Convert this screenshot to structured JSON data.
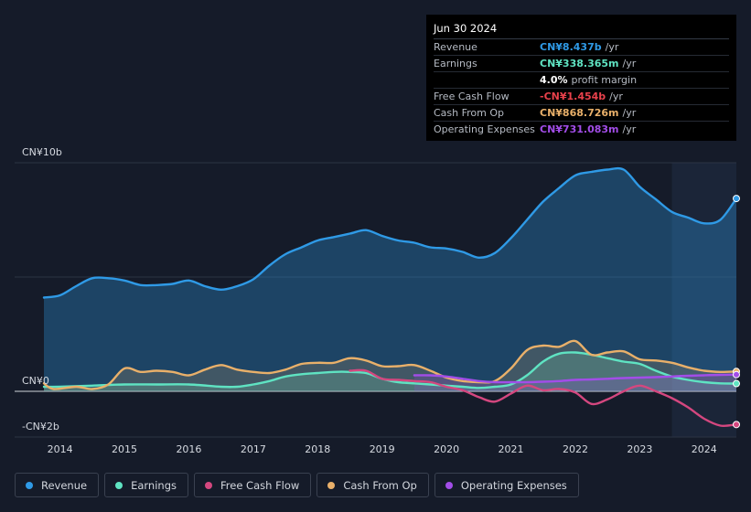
{
  "tooltip": {
    "date": "Jun 30 2024",
    "rows": [
      {
        "label": "Revenue",
        "value": "CN¥8.437b",
        "unit": "/yr",
        "color": "#2f9ae6"
      },
      {
        "label": "Earnings",
        "value": "CN¥338.365m",
        "unit": "/yr",
        "color": "#5fe3c2"
      },
      {
        "label": "",
        "value": "4.0%",
        "unit": "profit margin",
        "color": "#ffffff"
      },
      {
        "label": "Free Cash Flow",
        "value": "-CN¥1.454b",
        "unit": "/yr",
        "color": "#e8414b"
      },
      {
        "label": "Cash From Op",
        "value": "CN¥868.726m",
        "unit": "/yr",
        "color": "#e9b06a"
      },
      {
        "label": "Operating Expenses",
        "value": "CN¥731.083m",
        "unit": "/yr",
        "color": "#a24de8"
      }
    ]
  },
  "legend": [
    {
      "label": "Revenue",
      "color": "#2f9ae6"
    },
    {
      "label": "Earnings",
      "color": "#5fe3c2"
    },
    {
      "label": "Free Cash Flow",
      "color": "#d4477f"
    },
    {
      "label": "Cash From Op",
      "color": "#e9b06a"
    },
    {
      "label": "Operating Expenses",
      "color": "#a24de8"
    }
  ],
  "chart_data": {
    "type": "line",
    "unit": "CN¥ billions",
    "ylim": [
      -2,
      10
    ],
    "y_tick_labels": [
      {
        "value": 10,
        "label": "CN¥10b"
      },
      {
        "value": 0,
        "label": "CN¥0"
      },
      {
        "value": -2,
        "label": "-CN¥2b"
      }
    ],
    "x_ticks": [
      "2014",
      "2015",
      "2016",
      "2017",
      "2018",
      "2019",
      "2020",
      "2021",
      "2022",
      "2023",
      "2024"
    ],
    "x_range": [
      2013.75,
      2024.5
    ],
    "forecast_start": 2023.5,
    "series": [
      {
        "name": "Revenue",
        "color": "#2f9ae6",
        "fill": true,
        "x": [
          2013.75,
          2014.0,
          2014.25,
          2014.5,
          2014.75,
          2015.0,
          2015.25,
          2015.5,
          2015.75,
          2016.0,
          2016.25,
          2016.5,
          2016.75,
          2017.0,
          2017.25,
          2017.5,
          2017.75,
          2018.0,
          2018.25,
          2018.5,
          2018.75,
          2019.0,
          2019.25,
          2019.5,
          2019.75,
          2020.0,
          2020.25,
          2020.5,
          2020.75,
          2021.0,
          2021.25,
          2021.5,
          2021.75,
          2022.0,
          2022.25,
          2022.5,
          2022.75,
          2023.0,
          2023.25,
          2023.5,
          2023.75,
          2024.0,
          2024.25,
          2024.5
        ],
        "y": [
          4.1,
          4.2,
          4.6,
          4.95,
          4.95,
          4.85,
          4.65,
          4.65,
          4.7,
          4.85,
          4.6,
          4.45,
          4.6,
          4.9,
          5.5,
          6.0,
          6.3,
          6.6,
          6.75,
          6.9,
          7.05,
          6.8,
          6.6,
          6.5,
          6.3,
          6.25,
          6.1,
          5.85,
          6.05,
          6.7,
          7.5,
          8.3,
          8.9,
          9.45,
          9.6,
          9.7,
          9.7,
          8.95,
          8.4,
          7.85,
          7.6,
          7.35,
          7.5,
          8.437
        ]
      },
      {
        "name": "Earnings",
        "color": "#5fe3c2",
        "fill": true,
        "x": [
          2013.75,
          2014.0,
          2014.5,
          2015.0,
          2015.5,
          2016.0,
          2016.5,
          2016.75,
          2017.0,
          2017.25,
          2017.5,
          2017.75,
          2018.0,
          2018.25,
          2018.5,
          2018.75,
          2019.0,
          2019.25,
          2019.5,
          2019.75,
          2020.0,
          2020.25,
          2020.5,
          2020.75,
          2021.0,
          2021.25,
          2021.5,
          2021.75,
          2022.0,
          2022.25,
          2022.5,
          2022.75,
          2023.0,
          2023.25,
          2023.5,
          2023.75,
          2024.0,
          2024.25,
          2024.5
        ],
        "y": [
          0.2,
          0.2,
          0.25,
          0.3,
          0.3,
          0.3,
          0.2,
          0.2,
          0.3,
          0.45,
          0.65,
          0.75,
          0.8,
          0.85,
          0.85,
          0.8,
          0.55,
          0.4,
          0.35,
          0.3,
          0.25,
          0.2,
          0.15,
          0.2,
          0.3,
          0.7,
          1.3,
          1.65,
          1.7,
          1.6,
          1.45,
          1.3,
          1.2,
          0.9,
          0.65,
          0.5,
          0.4,
          0.35,
          0.338
        ]
      },
      {
        "name": "Free Cash Flow",
        "color": "#d4477f",
        "fill": false,
        "x": [
          2018.5,
          2018.75,
          2019.0,
          2019.25,
          2019.5,
          2019.75,
          2020.0,
          2020.25,
          2020.5,
          2020.75,
          2021.0,
          2021.25,
          2021.5,
          2021.75,
          2022.0,
          2022.25,
          2022.5,
          2022.75,
          2023.0,
          2023.25,
          2023.5,
          2023.75,
          2024.0,
          2024.25,
          2024.5
        ],
        "y": [
          0.9,
          0.9,
          0.55,
          0.5,
          0.45,
          0.4,
          0.2,
          0.05,
          -0.25,
          -0.45,
          -0.1,
          0.25,
          0.05,
          0.1,
          -0.05,
          -0.55,
          -0.35,
          0.0,
          0.25,
          0.0,
          -0.3,
          -0.7,
          -1.2,
          -1.5,
          -1.454
        ]
      },
      {
        "name": "Cash From Op",
        "color": "#e9b06a",
        "fill": true,
        "x": [
          2013.75,
          2013.9,
          2014.25,
          2014.5,
          2014.75,
          2015.0,
          2015.25,
          2015.5,
          2015.75,
          2016.0,
          2016.25,
          2016.5,
          2016.75,
          2017.0,
          2017.25,
          2017.5,
          2017.75,
          2018.0,
          2018.25,
          2018.5,
          2018.75,
          2019.0,
          2019.25,
          2019.5,
          2019.75,
          2020.0,
          2020.25,
          2020.5,
          2020.75,
          2021.0,
          2021.25,
          2021.5,
          2021.75,
          2022.0,
          2022.25,
          2022.5,
          2022.75,
          2023.0,
          2023.25,
          2023.5,
          2023.75,
          2024.0,
          2024.25,
          2024.5
        ],
        "y": [
          0.35,
          0.1,
          0.2,
          0.1,
          0.3,
          1.0,
          0.85,
          0.9,
          0.85,
          0.7,
          0.95,
          1.15,
          0.95,
          0.85,
          0.8,
          0.95,
          1.2,
          1.25,
          1.25,
          1.45,
          1.35,
          1.1,
          1.1,
          1.15,
          0.9,
          0.6,
          0.45,
          0.4,
          0.45,
          1.0,
          1.8,
          2.0,
          1.95,
          2.2,
          1.6,
          1.7,
          1.75,
          1.4,
          1.35,
          1.25,
          1.05,
          0.9,
          0.85,
          0.869
        ]
      },
      {
        "name": "Operating Expenses",
        "color": "#a24de8",
        "fill": true,
        "x": [
          2019.5,
          2019.75,
          2020.0,
          2020.25,
          2020.5,
          2020.75,
          2021.0,
          2021.25,
          2021.5,
          2021.75,
          2022.0,
          2022.25,
          2022.5,
          2022.75,
          2023.0,
          2023.25,
          2023.5,
          2023.75,
          2024.0,
          2024.25,
          2024.5
        ],
        "y": [
          0.7,
          0.7,
          0.65,
          0.55,
          0.45,
          0.4,
          0.4,
          0.4,
          0.42,
          0.45,
          0.5,
          0.52,
          0.55,
          0.58,
          0.6,
          0.62,
          0.65,
          0.68,
          0.7,
          0.72,
          0.731
        ]
      }
    ]
  }
}
